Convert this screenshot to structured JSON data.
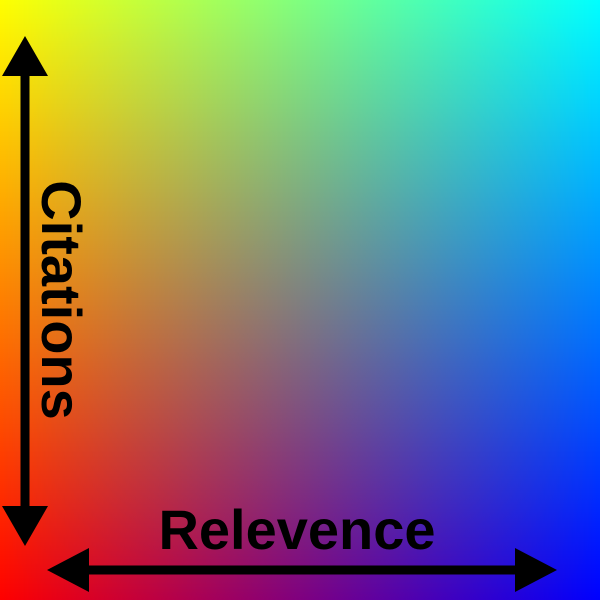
{
  "diagram": {
    "x_axis_label": "Relevence",
    "y_axis_label": "Citations",
    "x_arrow_direction": "both",
    "y_arrow_direction": "both",
    "background": {
      "type": "bilinear-gradient",
      "corners": {
        "top_left": "#ffff00",
        "top_right": "#00ffff",
        "bottom_left": "#ff0000",
        "bottom_right": "#0000ff"
      }
    },
    "ink_color": "#000000"
  }
}
